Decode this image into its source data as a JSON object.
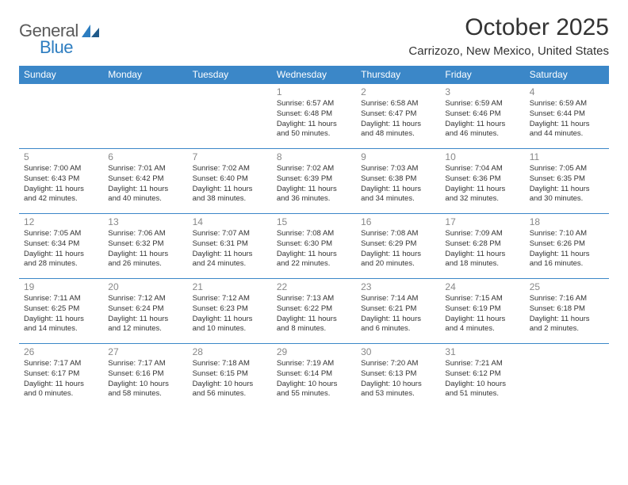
{
  "logo": {
    "textGeneral": "General",
    "textBlue": "Blue"
  },
  "header": {
    "monthTitle": "October 2025",
    "location": "Carrizozo, New Mexico, United States"
  },
  "colors": {
    "headerBg": "#3b87c8",
    "headerText": "#ffffff",
    "border": "#3b87c8",
    "dayNum": "#888888",
    "bodyText": "#333333",
    "logoGray": "#5a5a5a",
    "logoBlue": "#2d7dc0"
  },
  "dayNames": [
    "Sunday",
    "Monday",
    "Tuesday",
    "Wednesday",
    "Thursday",
    "Friday",
    "Saturday"
  ],
  "weeks": [
    [
      null,
      null,
      null,
      {
        "n": "1",
        "sr": "6:57 AM",
        "ss": "6:48 PM",
        "dl": "11 hours and 50 minutes."
      },
      {
        "n": "2",
        "sr": "6:58 AM",
        "ss": "6:47 PM",
        "dl": "11 hours and 48 minutes."
      },
      {
        "n": "3",
        "sr": "6:59 AM",
        "ss": "6:46 PM",
        "dl": "11 hours and 46 minutes."
      },
      {
        "n": "4",
        "sr": "6:59 AM",
        "ss": "6:44 PM",
        "dl": "11 hours and 44 minutes."
      }
    ],
    [
      {
        "n": "5",
        "sr": "7:00 AM",
        "ss": "6:43 PM",
        "dl": "11 hours and 42 minutes."
      },
      {
        "n": "6",
        "sr": "7:01 AM",
        "ss": "6:42 PM",
        "dl": "11 hours and 40 minutes."
      },
      {
        "n": "7",
        "sr": "7:02 AM",
        "ss": "6:40 PM",
        "dl": "11 hours and 38 minutes."
      },
      {
        "n": "8",
        "sr": "7:02 AM",
        "ss": "6:39 PM",
        "dl": "11 hours and 36 minutes."
      },
      {
        "n": "9",
        "sr": "7:03 AM",
        "ss": "6:38 PM",
        "dl": "11 hours and 34 minutes."
      },
      {
        "n": "10",
        "sr": "7:04 AM",
        "ss": "6:36 PM",
        "dl": "11 hours and 32 minutes."
      },
      {
        "n": "11",
        "sr": "7:05 AM",
        "ss": "6:35 PM",
        "dl": "11 hours and 30 minutes."
      }
    ],
    [
      {
        "n": "12",
        "sr": "7:05 AM",
        "ss": "6:34 PM",
        "dl": "11 hours and 28 minutes."
      },
      {
        "n": "13",
        "sr": "7:06 AM",
        "ss": "6:32 PM",
        "dl": "11 hours and 26 minutes."
      },
      {
        "n": "14",
        "sr": "7:07 AM",
        "ss": "6:31 PM",
        "dl": "11 hours and 24 minutes."
      },
      {
        "n": "15",
        "sr": "7:08 AM",
        "ss": "6:30 PM",
        "dl": "11 hours and 22 minutes."
      },
      {
        "n": "16",
        "sr": "7:08 AM",
        "ss": "6:29 PM",
        "dl": "11 hours and 20 minutes."
      },
      {
        "n": "17",
        "sr": "7:09 AM",
        "ss": "6:28 PM",
        "dl": "11 hours and 18 minutes."
      },
      {
        "n": "18",
        "sr": "7:10 AM",
        "ss": "6:26 PM",
        "dl": "11 hours and 16 minutes."
      }
    ],
    [
      {
        "n": "19",
        "sr": "7:11 AM",
        "ss": "6:25 PM",
        "dl": "11 hours and 14 minutes."
      },
      {
        "n": "20",
        "sr": "7:12 AM",
        "ss": "6:24 PM",
        "dl": "11 hours and 12 minutes."
      },
      {
        "n": "21",
        "sr": "7:12 AM",
        "ss": "6:23 PM",
        "dl": "11 hours and 10 minutes."
      },
      {
        "n": "22",
        "sr": "7:13 AM",
        "ss": "6:22 PM",
        "dl": "11 hours and 8 minutes."
      },
      {
        "n": "23",
        "sr": "7:14 AM",
        "ss": "6:21 PM",
        "dl": "11 hours and 6 minutes."
      },
      {
        "n": "24",
        "sr": "7:15 AM",
        "ss": "6:19 PM",
        "dl": "11 hours and 4 minutes."
      },
      {
        "n": "25",
        "sr": "7:16 AM",
        "ss": "6:18 PM",
        "dl": "11 hours and 2 minutes."
      }
    ],
    [
      {
        "n": "26",
        "sr": "7:17 AM",
        "ss": "6:17 PM",
        "dl": "11 hours and 0 minutes."
      },
      {
        "n": "27",
        "sr": "7:17 AM",
        "ss": "6:16 PM",
        "dl": "10 hours and 58 minutes."
      },
      {
        "n": "28",
        "sr": "7:18 AM",
        "ss": "6:15 PM",
        "dl": "10 hours and 56 minutes."
      },
      {
        "n": "29",
        "sr": "7:19 AM",
        "ss": "6:14 PM",
        "dl": "10 hours and 55 minutes."
      },
      {
        "n": "30",
        "sr": "7:20 AM",
        "ss": "6:13 PM",
        "dl": "10 hours and 53 minutes."
      },
      {
        "n": "31",
        "sr": "7:21 AM",
        "ss": "6:12 PM",
        "dl": "10 hours and 51 minutes."
      },
      null
    ]
  ],
  "labels": {
    "sunrisePrefix": "Sunrise: ",
    "sunsetPrefix": "Sunset: ",
    "daylightPrefix": "Daylight: "
  }
}
